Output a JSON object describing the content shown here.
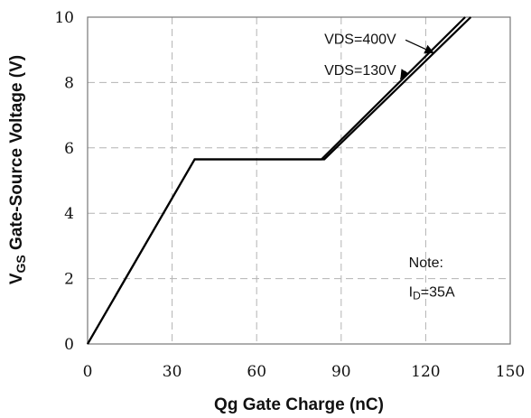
{
  "chart_data": {
    "type": "line",
    "title": "",
    "xlabel": "Qg Gate Charge (nC)",
    "ylabel": {
      "main": "V",
      "sub": "GS",
      "rest": " Gate-Source Voltage (V)"
    },
    "xlim": [
      0,
      150
    ],
    "ylim": [
      0,
      10
    ],
    "xticks": [
      0,
      30,
      60,
      90,
      120,
      150
    ],
    "yticks": [
      0,
      2,
      4,
      6,
      8,
      10
    ],
    "grid": true,
    "series": [
      {
        "name": "VDS=400V",
        "points": [
          [
            0,
            0
          ],
          [
            38,
            5.65
          ],
          [
            84,
            5.65
          ],
          [
            136,
            10
          ]
        ]
      },
      {
        "name": "VDS=130V",
        "points": [
          [
            0,
            0
          ],
          [
            38,
            5.65
          ],
          [
            83,
            5.65
          ],
          [
            134,
            10
          ]
        ]
      }
    ],
    "annotations": [
      {
        "text": "VDS=400V",
        "text_at": [
          84,
          9.3
        ],
        "arrow_to": [
          123,
          8.9
        ]
      },
      {
        "text": "VDS=130V",
        "text_at": [
          84,
          8.35
        ],
        "arrow_to": [
          111,
          8.1
        ]
      }
    ],
    "note": {
      "line1": "Note:",
      "line2_main": "I",
      "line2_sub": "D",
      "line2_rest": "=35A"
    },
    "colors": {
      "series": "#000000",
      "grid": "#b3b3b3",
      "frame": "#777777"
    }
  }
}
